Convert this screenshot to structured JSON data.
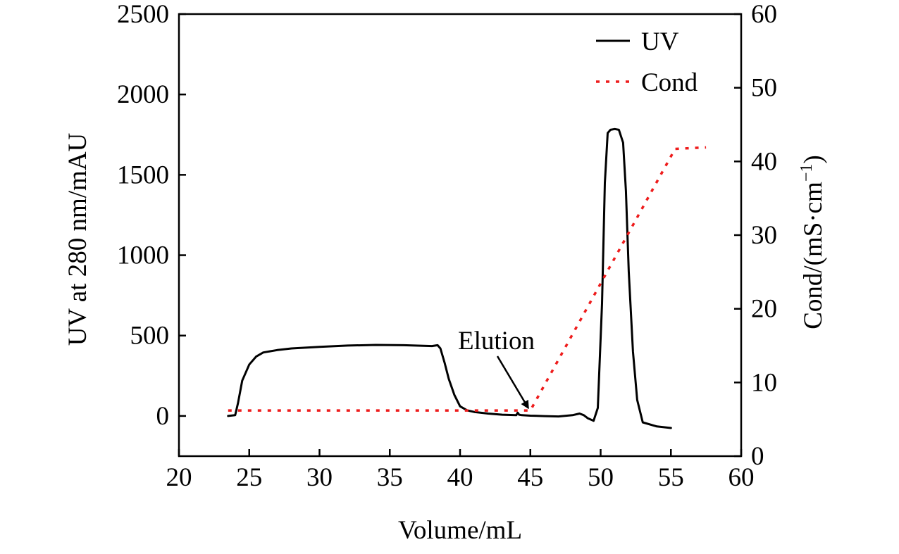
{
  "chart_data": {
    "type": "line",
    "xlabel": "Volume/mL",
    "ylabel": "UV at 280 nm/mAU",
    "y2label_main": "Cond/(mS·cm",
    "y2label_sup": "−1",
    "y2label_close": ")",
    "xlim": [
      20,
      60
    ],
    "ylim": [
      -250,
      2500
    ],
    "y2lim": [
      0,
      60
    ],
    "xticks": [
      "20",
      "25",
      "30",
      "35",
      "40",
      "45",
      "50",
      "55",
      "60"
    ],
    "yticks": [
      "0",
      "500",
      "1000",
      "1500",
      "2000",
      "2500"
    ],
    "y2ticks": [
      "0",
      "10",
      "20",
      "30",
      "40",
      "50",
      "60"
    ],
    "grid": false,
    "legend_position": "top-right",
    "annotations": [
      {
        "text": "Elution",
        "x": 45,
        "y": 15
      }
    ],
    "series": [
      {
        "name": "UV",
        "axis": "left",
        "color": "#000000",
        "style": "solid",
        "x": [
          23.5,
          24.0,
          24.2,
          24.5,
          25.0,
          25.5,
          26.0,
          27.0,
          28.0,
          30.0,
          32.0,
          34.0,
          36.0,
          38.0,
          38.4,
          38.6,
          38.9,
          39.2,
          39.6,
          40.0,
          40.5,
          41.0,
          42.0,
          43.0,
          44.0,
          44.1,
          44.2,
          44.4,
          45.0,
          46.0,
          47.0,
          48.0,
          48.5,
          48.8,
          49.1,
          49.5,
          49.8,
          50.1,
          50.3,
          50.5,
          50.7,
          51.0,
          51.3,
          51.6,
          51.8,
          52.0,
          52.3,
          52.6,
          53.0,
          54.0,
          55.0
        ],
        "values": [
          0,
          5,
          80,
          220,
          320,
          370,
          395,
          410,
          420,
          430,
          438,
          442,
          440,
          435,
          440,
          420,
          330,
          230,
          130,
          60,
          35,
          25,
          15,
          8,
          5,
          20,
          8,
          5,
          2,
          -1,
          -3,
          5,
          15,
          5,
          -15,
          -30,
          50,
          700,
          1450,
          1760,
          1780,
          1785,
          1780,
          1700,
          1400,
          900,
          400,
          100,
          -40,
          -65,
          -75
        ]
      },
      {
        "name": "Cond",
        "axis": "right",
        "color": "#ee1c1c",
        "style": "dotted",
        "x": [
          23.5,
          44.8,
          45.0,
          55.3,
          57.5
        ],
        "values": [
          6.2,
          6.2,
          6.2,
          41.7,
          41.9
        ]
      }
    ]
  }
}
